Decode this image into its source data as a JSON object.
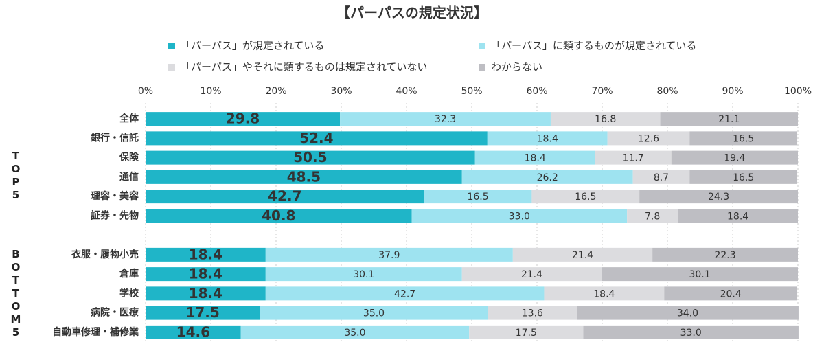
{
  "chart_data": {
    "type": "stacked-bar-horizontal",
    "title": "【パーパスの規定状況】",
    "categories": [
      "全体",
      "銀行・信託",
      "保険",
      "通信",
      "理容・美容",
      "証券・先物",
      null,
      "衣服・履物小売",
      "倉庫",
      "学校",
      "病院・医療",
      "自動車修理・補修業"
    ],
    "group_labels": [
      "TOP5",
      "BOTTOM5"
    ],
    "series": [
      {
        "name": "「パーパス」が規定されている",
        "color": "#1fb5c8",
        "values": [
          29.8,
          52.4,
          50.5,
          48.5,
          42.7,
          40.8,
          null,
          18.4,
          18.4,
          18.4,
          17.5,
          14.6
        ],
        "value_labels": [
          "29.8",
          "52.4",
          "50.5",
          "48.5",
          "42.7",
          "40.8",
          null,
          "18.4",
          "18.4",
          "18.4",
          "17.5",
          "14.6"
        ]
      },
      {
        "name": "「パーパス」に類するものが規定されている",
        "color": "#9ee3f0",
        "values": [
          32.3,
          18.4,
          18.4,
          26.2,
          16.5,
          33.0,
          null,
          37.9,
          30.1,
          42.7,
          35.0,
          35.0
        ],
        "value_labels": [
          "32.3",
          "18.4",
          "18.4",
          "26.2",
          "16.5",
          "33.0",
          null,
          "37.9",
          "30.1",
          "42.7",
          "35.0",
          "35.0"
        ]
      },
      {
        "name": "「パーパス」やそれに類するものは規定されていない",
        "color": "#dcdcdf",
        "values": [
          16.8,
          12.6,
          11.7,
          8.7,
          16.5,
          7.8,
          null,
          21.4,
          21.4,
          18.4,
          13.6,
          17.5
        ],
        "value_labels": [
          "16.8",
          "12.6",
          "11.7",
          "8.7",
          "16.5",
          "7.8",
          null,
          "21.4",
          "21.4",
          "18.4",
          "13.6",
          "17.5"
        ]
      },
      {
        "name": "わからない",
        "color": "#bebec3",
        "values": [
          21.1,
          16.5,
          19.4,
          16.5,
          24.3,
          18.4,
          null,
          22.3,
          30.1,
          20.4,
          34.0,
          33.0
        ],
        "value_labels": [
          "21.1",
          "16.5",
          "19.4",
          "16.5",
          "24.3",
          "18.4",
          null,
          "22.3",
          "30.1",
          "20.4",
          "34.0",
          "33.0"
        ]
      }
    ],
    "xlim": [
      0,
      100
    ],
    "xticks": [
      {
        "value": 0,
        "label": "0%"
      },
      {
        "value": 10,
        "label": "10%"
      },
      {
        "value": 20,
        "label": "20%"
      },
      {
        "value": 30,
        "label": "30%"
      },
      {
        "value": 40,
        "label": "40%"
      },
      {
        "value": 50,
        "label": "50%"
      },
      {
        "value": 60,
        "label": "60%"
      },
      {
        "value": 70,
        "label": "70%"
      },
      {
        "value": 80,
        "label": "80%"
      },
      {
        "value": 90,
        "label": "90%"
      },
      {
        "value": 100,
        "label": "100%"
      }
    ],
    "grid": true
  }
}
